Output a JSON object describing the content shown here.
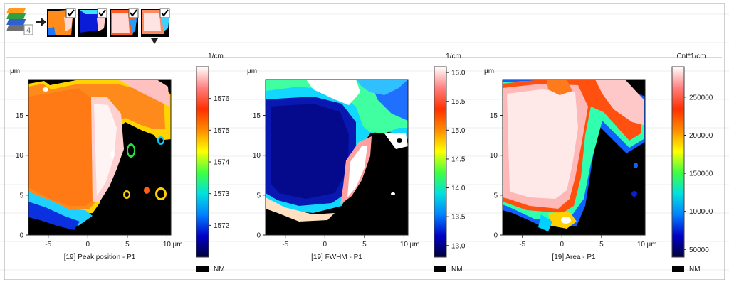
{
  "toolbar": {
    "stack_badge": "4",
    "icons": [
      "layer-stack-icon",
      "arrow-right-icon",
      "thumbnail-peak-position-icon",
      "thumbnail-fwhm-icon",
      "thumbnail-area-icon",
      "thumbnail-extra-icon",
      "dropdown-triangle-icon"
    ]
  },
  "colors": {
    "nm": "#000000",
    "colormap": [
      "#00003c",
      "#0000c8",
      "#0080ff",
      "#00e0e0",
      "#40ff40",
      "#ffff00",
      "#ff8c00",
      "#ff3000",
      "#ff8080",
      "#ffffff"
    ]
  },
  "nm_label": "NM",
  "chart_data": [
    {
      "type": "heatmap",
      "title": "[19] Peak position - P1",
      "xunit": "µm",
      "yunit": "µm",
      "xlim": [
        -7.5,
        10.5
      ],
      "ylim": [
        0,
        19.5
      ],
      "xticks": [
        "-5",
        "0",
        "5",
        "10"
      ],
      "yticks": [
        "0",
        "5",
        "10",
        "15"
      ],
      "colorbar": {
        "unit": "1/cm",
        "range": [
          1571,
          1577
        ],
        "ticks": [
          "1572",
          "1573",
          "1574",
          "1575",
          "1576"
        ]
      }
    },
    {
      "type": "heatmap",
      "title": "[19] FWHM - P1",
      "xunit": "µm",
      "yunit": "µm",
      "xlim": [
        -7.5,
        10.5
      ],
      "ylim": [
        0,
        19.5
      ],
      "xticks": [
        "-5",
        "0",
        "5",
        "10"
      ],
      "yticks": [
        "0",
        "5",
        "10",
        "15"
      ],
      "colorbar": {
        "unit": "1/cm",
        "range": [
          12.8,
          16.1
        ],
        "ticks": [
          "13.0",
          "13.5",
          "14.0",
          "14.5",
          "15.0",
          "15.5",
          "16.0"
        ]
      }
    },
    {
      "type": "heatmap",
      "title": "[19] Area - P1",
      "xunit": "µm",
      "yunit": "µm",
      "xlim": [
        -7.5,
        10.5
      ],
      "ylim": [
        0,
        19.5
      ],
      "xticks": [
        "-5",
        "0",
        "5",
        "10"
      ],
      "yticks": [
        "0",
        "5",
        "10",
        "15"
      ],
      "colorbar": {
        "unit": "Cnt*1/cm",
        "range": [
          40000,
          290000
        ],
        "ticks": [
          "50000",
          "100000",
          "150000",
          "200000",
          "250000"
        ]
      }
    }
  ]
}
